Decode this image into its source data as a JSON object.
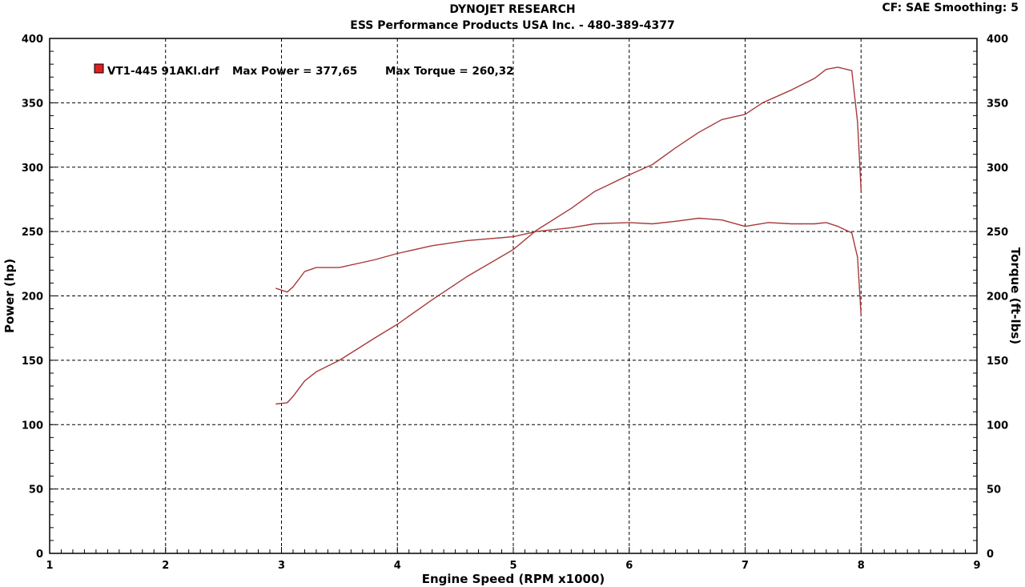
{
  "header": {
    "title": "DYNOJET RESEARCH",
    "subtitle": "ESS Performance Products USA Inc. - 480-389-4377",
    "corner": "CF: SAE  Smoothing: 5"
  },
  "colors": {
    "series": "#a83a3a",
    "legend_swatch": "#e02020",
    "grid": "#000000"
  },
  "chart_data": {
    "type": "line",
    "xlabel": "Engine Speed (RPM x1000)",
    "ylabel_left": "Power (hp)",
    "ylabel_right": "Torque (ft-lbs)",
    "xlim": [
      1,
      9
    ],
    "ylim": [
      0,
      400
    ],
    "x_ticks": [
      "1",
      "2",
      "3",
      "4",
      "5",
      "6",
      "7",
      "8",
      "9"
    ],
    "y_ticks": [
      "0",
      "50",
      "100",
      "150",
      "200",
      "250",
      "300",
      "350",
      "400"
    ],
    "grid": true,
    "legend": {
      "position": "top-left",
      "entry": "VT1-445 91AKI.drf",
      "max_power_label": "Max Power = 377,65",
      "max_torque_label": "Max Torque = 260,32"
    },
    "series": [
      {
        "key": "power",
        "axis": "left",
        "x": [
          2.95,
          3.05,
          3.1,
          3.2,
          3.3,
          3.5,
          3.8,
          4.0,
          4.3,
          4.6,
          5.0,
          5.2,
          5.5,
          5.7,
          6.0,
          6.2,
          6.4,
          6.6,
          6.8,
          7.0,
          7.15,
          7.4,
          7.6,
          7.7,
          7.8,
          7.92,
          7.97,
          8.0
        ],
        "y": [
          116,
          117,
          122,
          134,
          141,
          150,
          167,
          178,
          197,
          215,
          236,
          251,
          268,
          281,
          294,
          302,
          315,
          327,
          337,
          341,
          350,
          360,
          369,
          376,
          377.65,
          375,
          335,
          282
        ]
      },
      {
        "key": "torque",
        "axis": "right",
        "x": [
          2.95,
          3.05,
          3.1,
          3.2,
          3.3,
          3.5,
          3.8,
          4.0,
          4.3,
          4.6,
          5.0,
          5.2,
          5.5,
          5.7,
          6.0,
          6.2,
          6.4,
          6.6,
          6.8,
          7.0,
          7.2,
          7.4,
          7.6,
          7.7,
          7.8,
          7.92,
          7.97,
          8.0
        ],
        "y": [
          206,
          203,
          207,
          219,
          222,
          222,
          228,
          233,
          239,
          243,
          246,
          250,
          253,
          256,
          257,
          256,
          258,
          260.32,
          259,
          254,
          257,
          256,
          256,
          257,
          254,
          249,
          230,
          185
        ]
      }
    ]
  }
}
